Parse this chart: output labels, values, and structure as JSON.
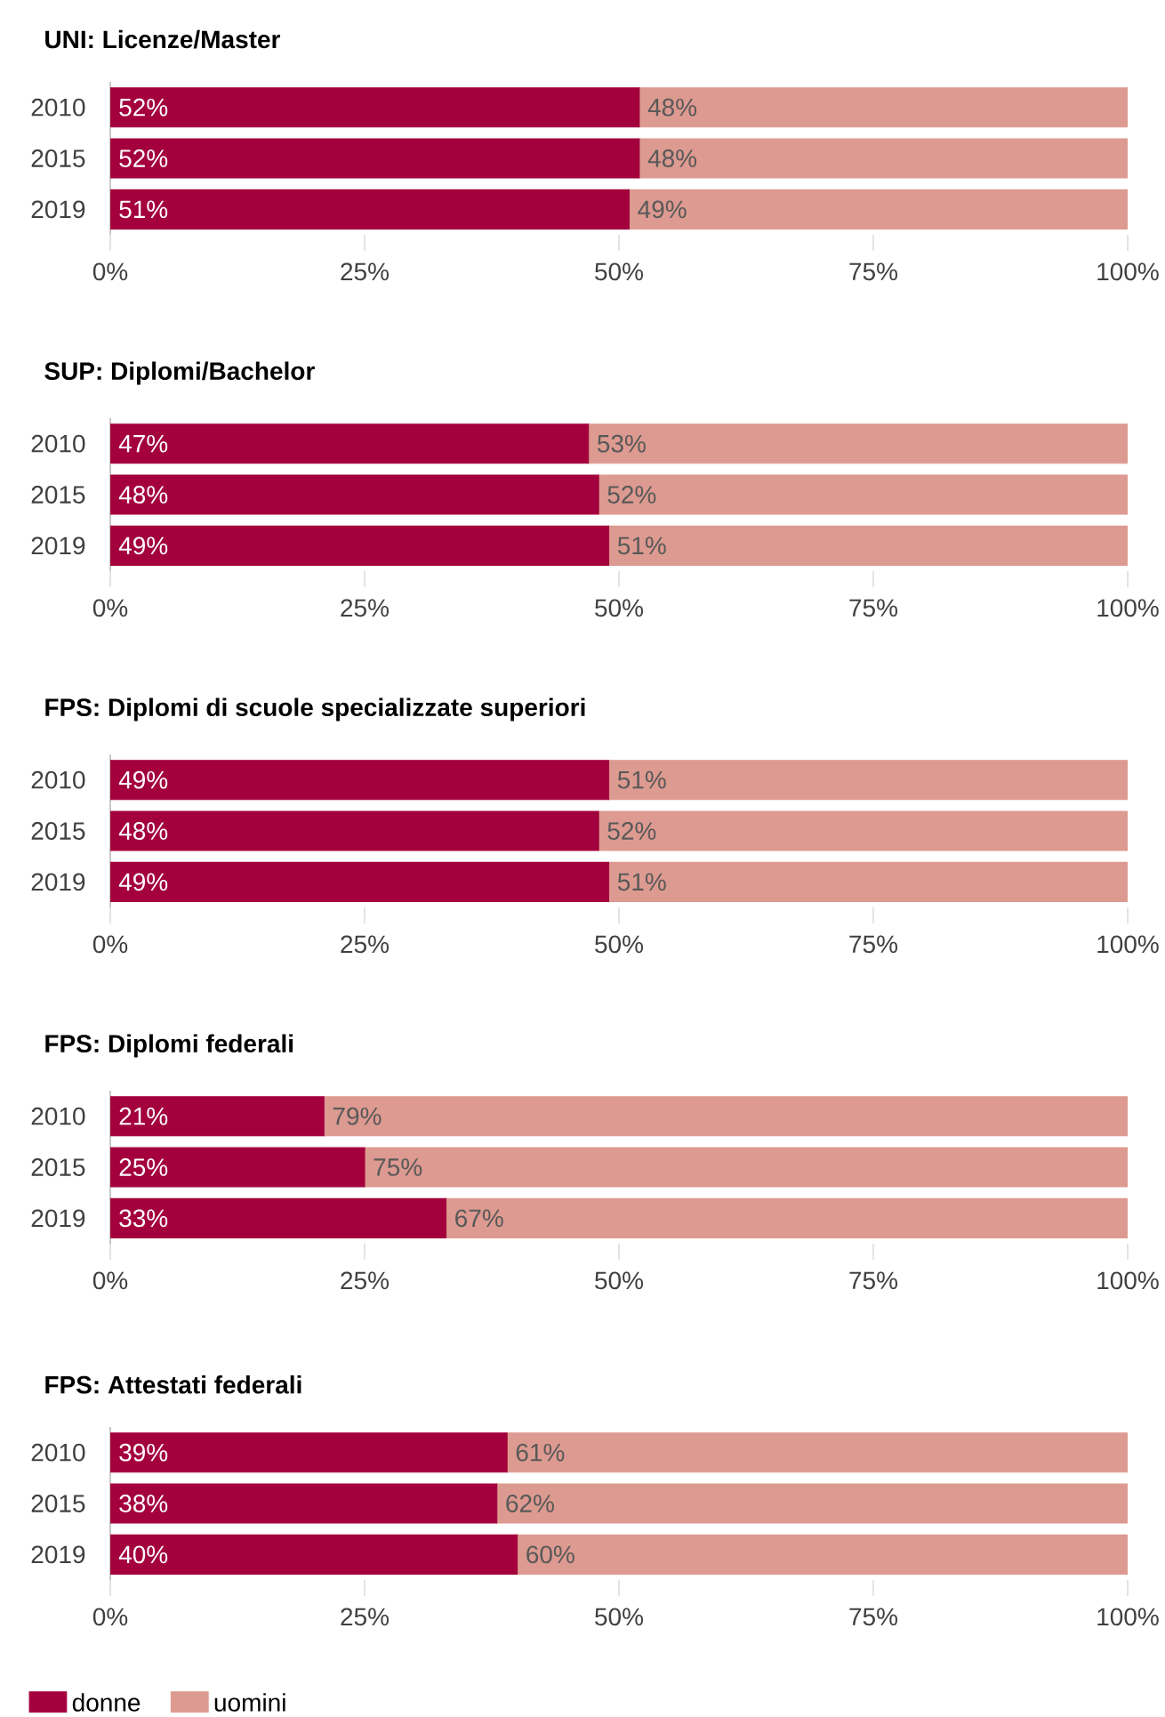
{
  "chart_data": [
    {
      "type": "bar",
      "title": "UNI: Licenze/Master",
      "categories": [
        "2010",
        "2015",
        "2019"
      ],
      "stacked": true,
      "orientation": "horizontal",
      "xlim": [
        0,
        100
      ],
      "xticks": [
        {
          "value": 0,
          "label": "0%"
        },
        {
          "value": 25,
          "label": "25%"
        },
        {
          "value": 50,
          "label": "50%"
        },
        {
          "value": 75,
          "label": "75%"
        },
        {
          "value": 100,
          "label": "100%"
        }
      ],
      "series": [
        {
          "color": "#a3003d",
          "values": [
            52,
            52,
            51
          ],
          "value_labels": [
            "52%",
            "52%",
            "51%"
          ]
        },
        {
          "color": "#dd9a90",
          "values": [
            48,
            48,
            49
          ],
          "value_labels": [
            "48%",
            "48%",
            "49%"
          ]
        }
      ]
    },
    {
      "type": "bar",
      "title": "SUP: Diplomi/Bachelor",
      "categories": [
        "2010",
        "2015",
        "2019"
      ],
      "stacked": true,
      "orientation": "horizontal",
      "xlim": [
        0,
        100
      ],
      "xticks": [
        {
          "value": 0,
          "label": "0%"
        },
        {
          "value": 25,
          "label": "25%"
        },
        {
          "value": 50,
          "label": "50%"
        },
        {
          "value": 75,
          "label": "75%"
        },
        {
          "value": 100,
          "label": "100%"
        }
      ],
      "series": [
        {
          "color": "#a3003d",
          "values": [
            47,
            48,
            49
          ],
          "value_labels": [
            "47%",
            "48%",
            "49%"
          ]
        },
        {
          "color": "#dd9a90",
          "values": [
            53,
            52,
            51
          ],
          "value_labels": [
            "53%",
            "52%",
            "51%"
          ]
        }
      ]
    },
    {
      "type": "bar",
      "title": "FPS: Diplomi di scuole specializzate superiori",
      "categories": [
        "2010",
        "2015",
        "2019"
      ],
      "stacked": true,
      "orientation": "horizontal",
      "xlim": [
        0,
        100
      ],
      "xticks": [
        {
          "value": 0,
          "label": "0%"
        },
        {
          "value": 25,
          "label": "25%"
        },
        {
          "value": 50,
          "label": "50%"
        },
        {
          "value": 75,
          "label": "75%"
        },
        {
          "value": 100,
          "label": "100%"
        }
      ],
      "series": [
        {
          "color": "#a3003d",
          "values": [
            49,
            48,
            49
          ],
          "value_labels": [
            "49%",
            "48%",
            "49%"
          ]
        },
        {
          "color": "#dd9a90",
          "values": [
            51,
            52,
            51
          ],
          "value_labels": [
            "51%",
            "52%",
            "51%"
          ]
        }
      ]
    },
    {
      "type": "bar",
      "title": "FPS: Diplomi federali",
      "categories": [
        "2010",
        "2015",
        "2019"
      ],
      "stacked": true,
      "orientation": "horizontal",
      "xlim": [
        0,
        100
      ],
      "xticks": [
        {
          "value": 0,
          "label": "0%"
        },
        {
          "value": 25,
          "label": "25%"
        },
        {
          "value": 50,
          "label": "50%"
        },
        {
          "value": 75,
          "label": "75%"
        },
        {
          "value": 100,
          "label": "100%"
        }
      ],
      "series": [
        {
          "color": "#a3003d",
          "values": [
            21,
            25,
            33
          ],
          "value_labels": [
            "21%",
            "25%",
            "33%"
          ]
        },
        {
          "color": "#dd9a90",
          "values": [
            79,
            75,
            67
          ],
          "value_labels": [
            "79%",
            "75%",
            "67%"
          ]
        }
      ]
    },
    {
      "type": "bar",
      "title": "FPS: Attestati federali",
      "categories": [
        "2010",
        "2015",
        "2019"
      ],
      "stacked": true,
      "orientation": "horizontal",
      "xlim": [
        0,
        100
      ],
      "xticks": [
        {
          "value": 0,
          "label": "0%"
        },
        {
          "value": 25,
          "label": "25%"
        },
        {
          "value": 50,
          "label": "50%"
        },
        {
          "value": 75,
          "label": "75%"
        },
        {
          "value": 100,
          "label": "100%"
        }
      ],
      "legend": "bottom",
      "series": [
        {
          "name": "donne",
          "color": "#a3003d",
          "values": [
            39,
            38,
            40
          ],
          "value_labels": [
            "39%",
            "38%",
            "40%"
          ]
        },
        {
          "name": "uomini",
          "color": "#dd9a90",
          "values": [
            61,
            62,
            60
          ],
          "value_labels": [
            "61%",
            "62%",
            "60%"
          ]
        }
      ]
    }
  ]
}
